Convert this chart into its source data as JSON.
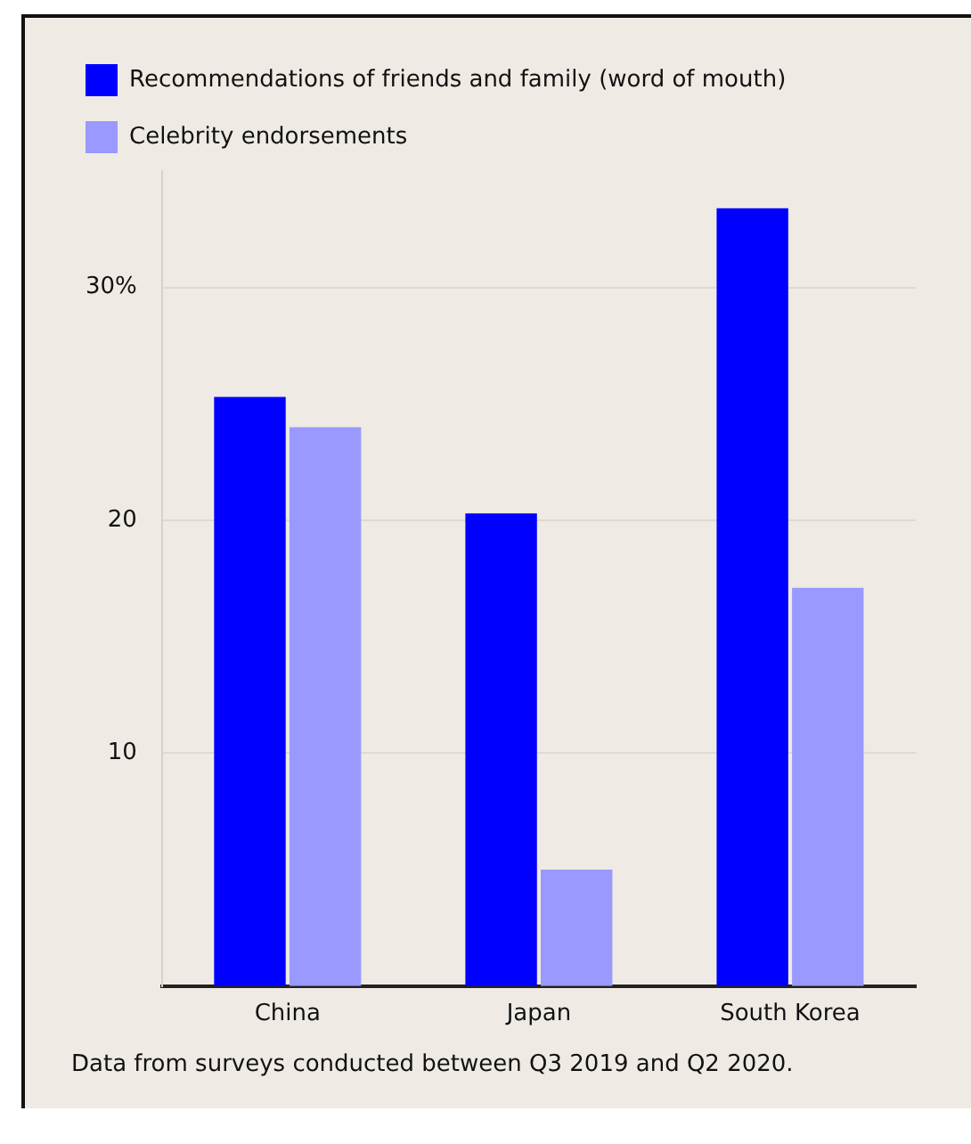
{
  "chart_data": {
    "type": "bar",
    "categories": [
      "China",
      "Japan",
      "South Korea"
    ],
    "series": [
      {
        "name": "Recommendations of friends and family (word of mouth)",
        "color": "#0000ff",
        "values": [
          25.3,
          20.3,
          33.4
        ]
      },
      {
        "name": "Celebrity endorsements",
        "color": "#9999ff",
        "values": [
          24.0,
          5.0,
          17.1
        ]
      }
    ],
    "ylim": [
      0,
      35
    ],
    "yticks": [
      {
        "value": 10,
        "label": "10"
      },
      {
        "value": 20,
        "label": "20"
      },
      {
        "value": 30,
        "label": "30%"
      }
    ],
    "grid": "y",
    "legend": "top left",
    "annotations": [
      "Data from surveys conducted between Q3 2019 and Q2 2020."
    ]
  }
}
